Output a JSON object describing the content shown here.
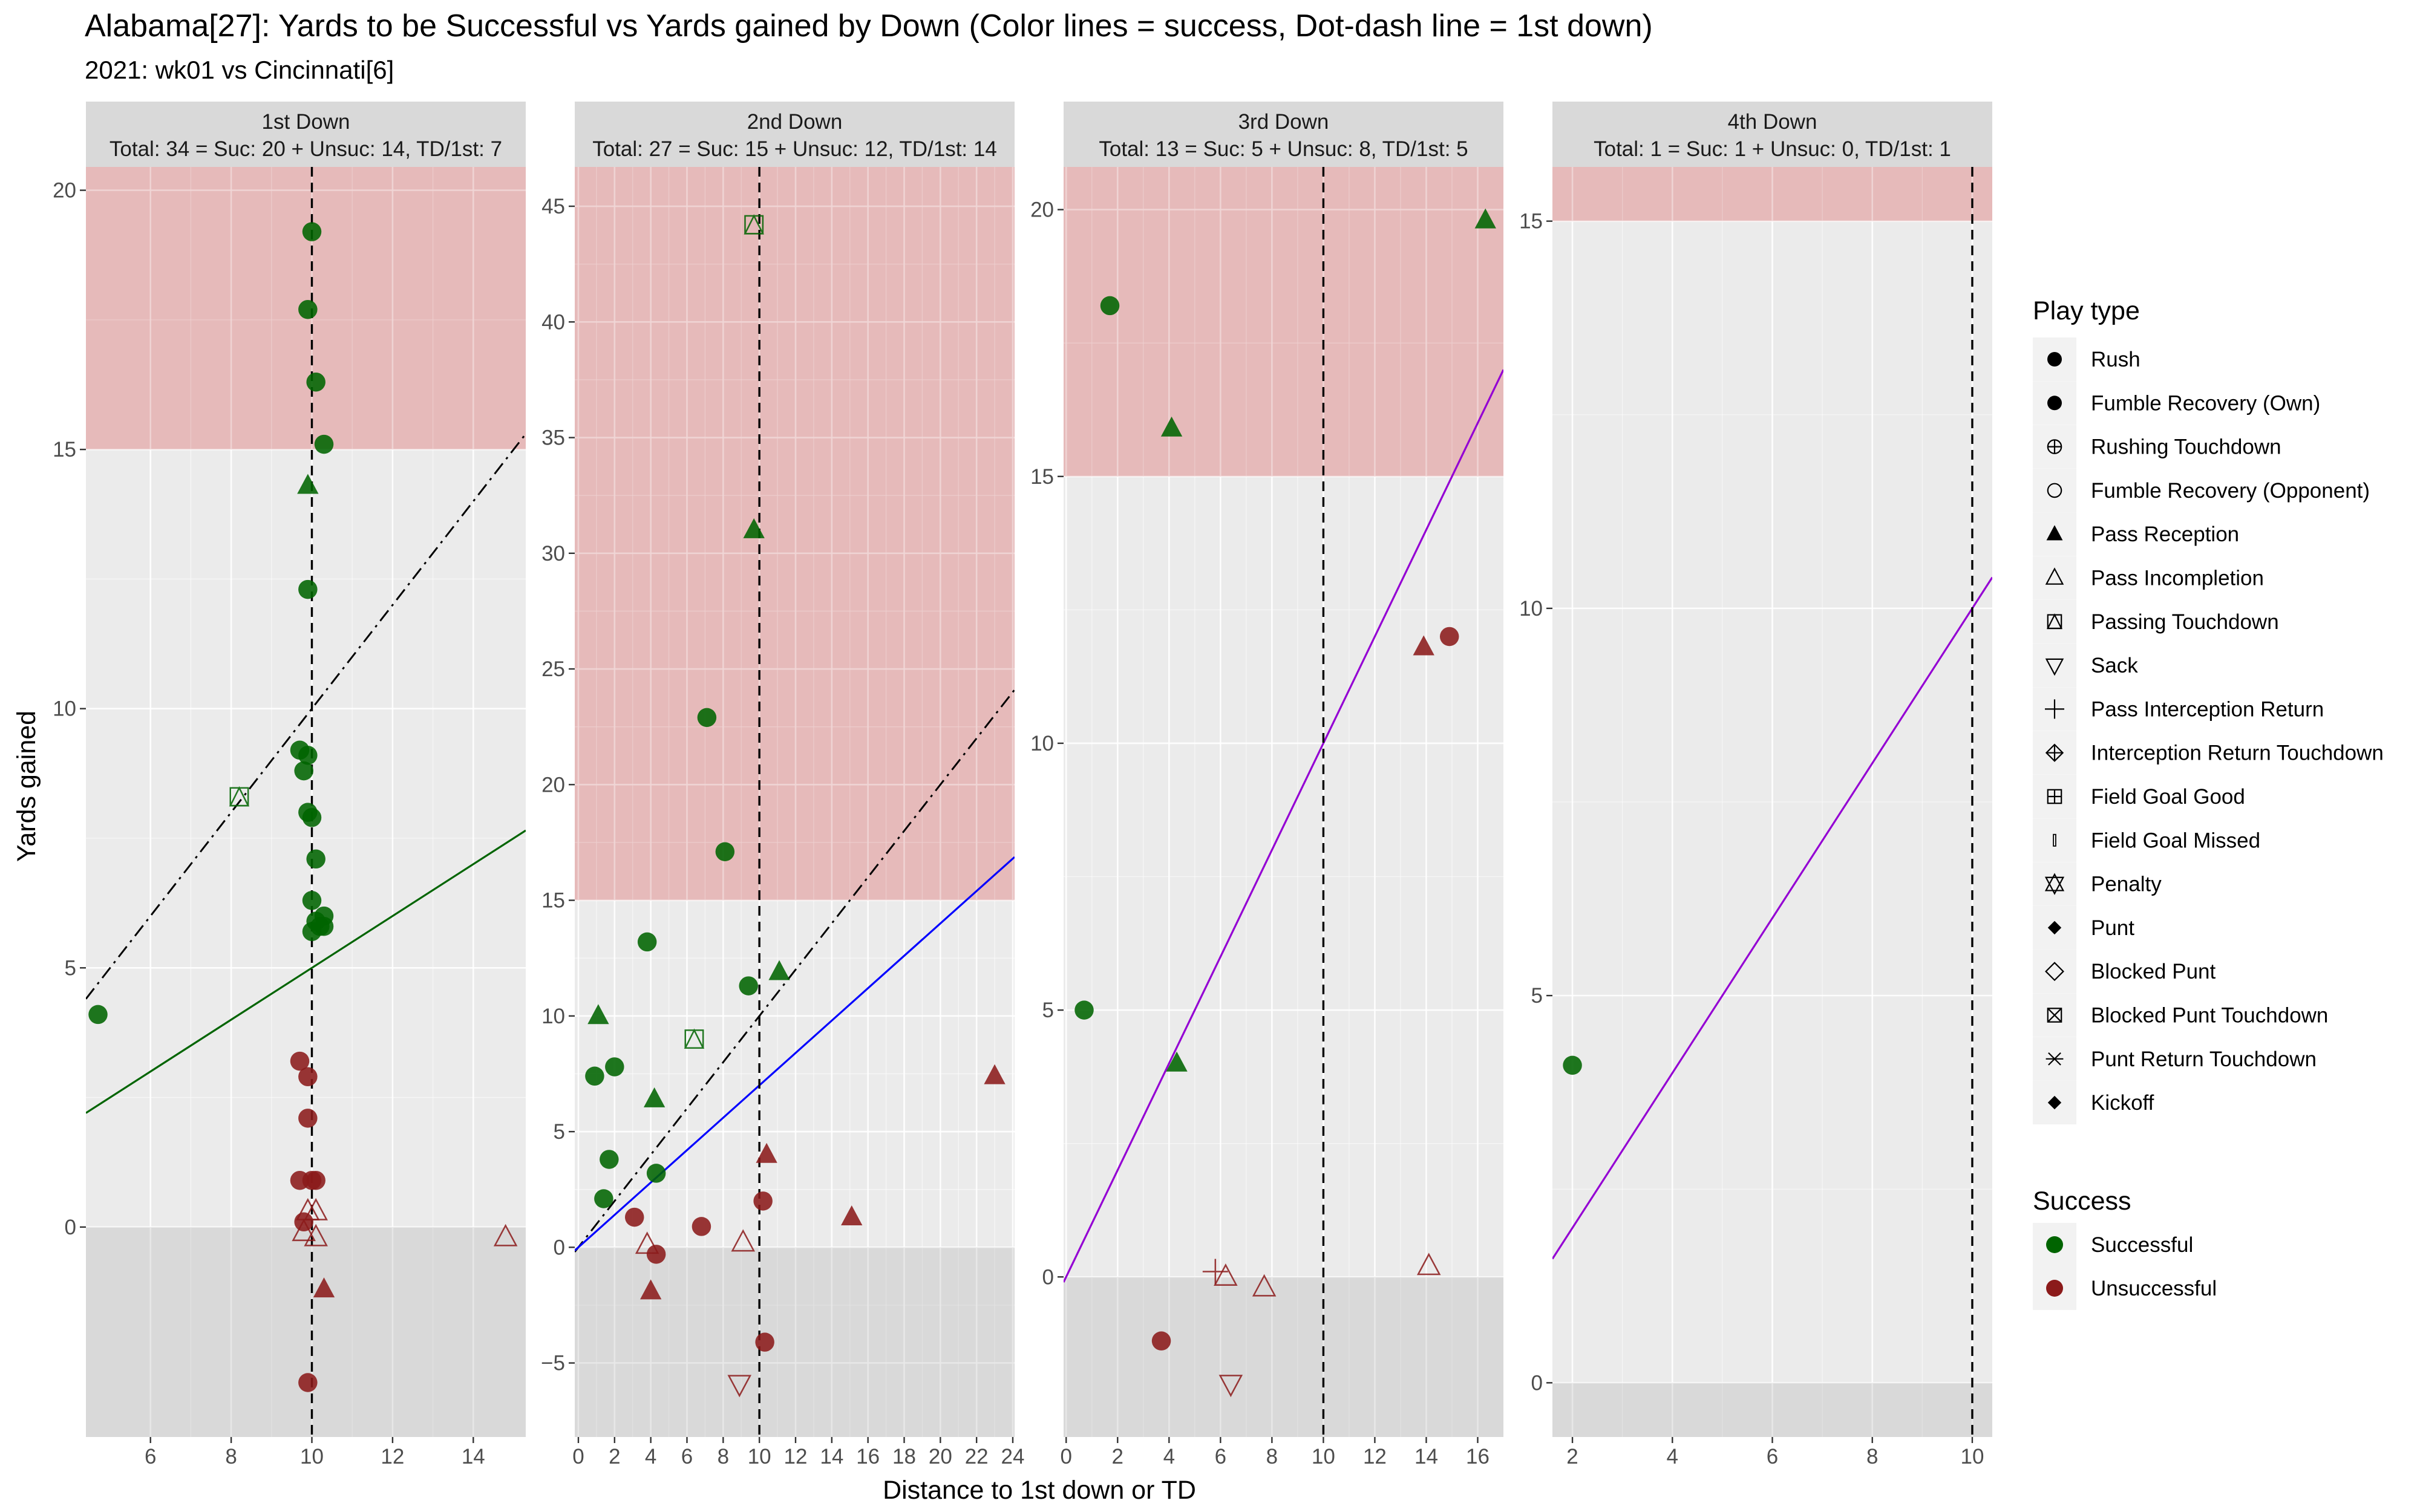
{
  "chart_data": {
    "type": "scatter",
    "title": "Alabama[27]: Yards to be Successful vs Yards gained by Down  (Color lines = success, Dot-dash line = 1st down)",
    "subtitle": "2021: wk01 vs Cincinnati[6]",
    "xlabel": "Distance to 1st down or TD",
    "ylabel": "Yards gained",
    "colors": {
      "Successful": "#006400",
      "Unsuccessful": "#8B1A1A",
      "panel_background": "#EBEBEB",
      "band_high": "#E6BABA",
      "band_low": "#D9D9D9",
      "strip_background": "#D9D9D9",
      "line_1st_down_success": "#006400",
      "line_2nd_down_success": "#0000FF",
      "line_3rd_4th_down_success": "#9400D3"
    },
    "legend": {
      "placement": "right",
      "play_type_title": "Play type",
      "play_types": [
        {
          "label": "Rush",
          "icon": "circle-filled"
        },
        {
          "label": "Fumble Recovery (Own)",
          "icon": "circle-filled"
        },
        {
          "label": "Rushing Touchdown",
          "icon": "circle-plus"
        },
        {
          "label": "Fumble Recovery (Opponent)",
          "icon": "circle-open"
        },
        {
          "label": "Pass Reception",
          "icon": "triangle-filled"
        },
        {
          "label": "Pass Incompletion",
          "icon": "triangle-open"
        },
        {
          "label": "Passing Touchdown",
          "icon": "square-triangle"
        },
        {
          "label": "Sack",
          "icon": "triangle-down-open"
        },
        {
          "label": "Pass Interception Return",
          "icon": "plus"
        },
        {
          "label": "Interception Return Touchdown",
          "icon": "diamond-plus"
        },
        {
          "label": "Field Goal Good",
          "icon": "square-plus"
        },
        {
          "label": "Field Goal Missed",
          "icon": "thin-bar"
        },
        {
          "label": "Penalty",
          "icon": "star-of-david"
        },
        {
          "label": "Punt",
          "icon": "diamond-filled"
        },
        {
          "label": "Blocked Punt",
          "icon": "diamond-open"
        },
        {
          "label": "Blocked Punt Touchdown",
          "icon": "square-x"
        },
        {
          "label": "Punt Return Touchdown",
          "icon": "asterisk"
        },
        {
          "label": "Kickoff",
          "icon": "diamond-filled"
        }
      ],
      "success_title": "Success",
      "success_items": [
        {
          "label": "Successful",
          "color": "#006400"
        },
        {
          "label": "Unsuccessful",
          "color": "#8B1A1A"
        }
      ]
    },
    "panels": [
      {
        "strip_title": "1st Down",
        "strip_summary": "Total: 34 = Suc: 20 + Unsuc: 14, TD/1st: 7",
        "xlim": [
          4.4,
          15.3
        ],
        "ylim": [
          -4.05,
          20.45
        ],
        "xticks": [
          6,
          8,
          10,
          12,
          14
        ],
        "yticks": [
          0,
          5,
          10,
          15,
          20
        ],
        "first_down_x": 10,
        "success_line": {
          "slope": 0.5,
          "intercept": 0,
          "color": "#006400",
          "style": "solid"
        },
        "first_down_line": {
          "slope": 1,
          "intercept": 0,
          "style": "dot-dash"
        },
        "points": [
          {
            "x": 10.0,
            "y": 19.2,
            "shape": "circle-filled",
            "success": true
          },
          {
            "x": 9.9,
            "y": 17.7,
            "shape": "circle-filled",
            "success": true
          },
          {
            "x": 10.1,
            "y": 16.3,
            "shape": "circle-filled",
            "success": true
          },
          {
            "x": 10.3,
            "y": 15.1,
            "shape": "circle-filled",
            "success": true
          },
          {
            "x": 9.9,
            "y": 14.3,
            "shape": "triangle-filled",
            "success": true
          },
          {
            "x": 9.9,
            "y": 12.3,
            "shape": "circle-filled",
            "success": true
          },
          {
            "x": 9.7,
            "y": 9.2,
            "shape": "circle-filled",
            "success": true
          },
          {
            "x": 9.9,
            "y": 9.1,
            "shape": "circle-filled",
            "success": true
          },
          {
            "x": 9.8,
            "y": 8.8,
            "shape": "circle-filled",
            "success": true
          },
          {
            "x": 8.2,
            "y": 8.3,
            "shape": "square-triangle",
            "success": true
          },
          {
            "x": 10.0,
            "y": 7.9,
            "shape": "circle-filled",
            "success": true
          },
          {
            "x": 9.9,
            "y": 8.0,
            "shape": "circle-filled",
            "success": true
          },
          {
            "x": 10.1,
            "y": 7.1,
            "shape": "circle-filled",
            "success": true
          },
          {
            "x": 10.0,
            "y": 6.3,
            "shape": "circle-filled",
            "success": true
          },
          {
            "x": 10.3,
            "y": 6.0,
            "shape": "circle-filled",
            "success": true
          },
          {
            "x": 10.1,
            "y": 5.9,
            "shape": "circle-filled",
            "success": true
          },
          {
            "x": 10.2,
            "y": 5.8,
            "shape": "circle-filled",
            "success": true
          },
          {
            "x": 10.3,
            "y": 5.8,
            "shape": "circle-filled",
            "success": true
          },
          {
            "x": 10.0,
            "y": 5.7,
            "shape": "circle-filled",
            "success": true
          },
          {
            "x": 4.7,
            "y": 4.1,
            "shape": "circle-filled",
            "success": true
          },
          {
            "x": 9.7,
            "y": 3.2,
            "shape": "circle-filled",
            "success": false
          },
          {
            "x": 9.9,
            "y": 2.9,
            "shape": "circle-filled",
            "success": false
          },
          {
            "x": 9.9,
            "y": 2.1,
            "shape": "circle-filled",
            "success": false
          },
          {
            "x": 9.7,
            "y": 0.9,
            "shape": "circle-filled",
            "success": false
          },
          {
            "x": 10.1,
            "y": 0.9,
            "shape": "circle-filled",
            "success": false
          },
          {
            "x": 10.0,
            "y": 0.9,
            "shape": "circle-filled",
            "success": false
          },
          {
            "x": 9.9,
            "y": 0.3,
            "shape": "triangle-open",
            "success": false
          },
          {
            "x": 10.1,
            "y": 0.3,
            "shape": "triangle-open",
            "success": false
          },
          {
            "x": 9.8,
            "y": 0.1,
            "shape": "circle-filled",
            "success": false
          },
          {
            "x": 9.8,
            "y": -0.1,
            "shape": "triangle-open",
            "success": false
          },
          {
            "x": 10.1,
            "y": -0.2,
            "shape": "triangle-open",
            "success": false
          },
          {
            "x": 14.8,
            "y": -0.2,
            "shape": "triangle-open",
            "success": false
          },
          {
            "x": 10.3,
            "y": -1.2,
            "shape": "triangle-filled",
            "success": false
          },
          {
            "x": 9.9,
            "y": -3.0,
            "shape": "circle-filled",
            "success": false
          }
        ]
      },
      {
        "strip_title": "2nd Down",
        "strip_summary": "Total: 27 = Suc: 15 + Unsuc: 12, TD/1st: 14",
        "xlim": [
          -0.2,
          24.1
        ],
        "ylim": [
          -8.2,
          46.7
        ],
        "xticks": [
          0,
          2,
          4,
          6,
          8,
          10,
          12,
          14,
          16,
          18,
          20,
          22,
          24
        ],
        "yticks": [
          -5,
          0,
          5,
          10,
          15,
          20,
          25,
          30,
          35,
          40,
          45
        ],
        "first_down_x": 10,
        "success_line": {
          "slope": 0.7,
          "intercept": 0,
          "color": "#0000FF",
          "style": "solid"
        },
        "first_down_line": {
          "slope": 1,
          "intercept": 0,
          "style": "dot-dash"
        },
        "points": [
          {
            "x": 9.7,
            "y": 44.2,
            "shape": "square-triangle",
            "success": true
          },
          {
            "x": 9.7,
            "y": 31.0,
            "shape": "triangle-filled",
            "success": true
          },
          {
            "x": 7.1,
            "y": 22.9,
            "shape": "circle-filled",
            "success": true
          },
          {
            "x": 8.1,
            "y": 17.1,
            "shape": "circle-filled",
            "success": true
          },
          {
            "x": 3.8,
            "y": 13.2,
            "shape": "circle-filled",
            "success": true
          },
          {
            "x": 11.1,
            "y": 11.9,
            "shape": "triangle-filled",
            "success": true
          },
          {
            "x": 9.4,
            "y": 11.3,
            "shape": "circle-filled",
            "success": true
          },
          {
            "x": 1.1,
            "y": 10.0,
            "shape": "triangle-filled",
            "success": true
          },
          {
            "x": 6.4,
            "y": 9.0,
            "shape": "square-triangle",
            "success": true
          },
          {
            "x": 2.0,
            "y": 7.8,
            "shape": "circle-filled",
            "success": true
          },
          {
            "x": 0.9,
            "y": 7.4,
            "shape": "circle-filled",
            "success": true
          },
          {
            "x": 4.2,
            "y": 6.4,
            "shape": "triangle-filled",
            "success": true
          },
          {
            "x": 1.7,
            "y": 3.8,
            "shape": "circle-filled",
            "success": true
          },
          {
            "x": 4.3,
            "y": 3.2,
            "shape": "circle-filled",
            "success": true
          },
          {
            "x": 1.4,
            "y": 2.1,
            "shape": "circle-filled",
            "success": true
          },
          {
            "x": 23.0,
            "y": 7.4,
            "shape": "triangle-filled",
            "success": false
          },
          {
            "x": 10.4,
            "y": 4.0,
            "shape": "triangle-filled",
            "success": false
          },
          {
            "x": 10.2,
            "y": 2.0,
            "shape": "circle-filled",
            "success": false
          },
          {
            "x": 15.1,
            "y": 1.3,
            "shape": "triangle-filled",
            "success": false
          },
          {
            "x": 3.1,
            "y": 1.3,
            "shape": "circle-filled",
            "success": false
          },
          {
            "x": 6.8,
            "y": 0.9,
            "shape": "circle-filled",
            "success": false
          },
          {
            "x": 9.1,
            "y": 0.2,
            "shape": "triangle-open",
            "success": false
          },
          {
            "x": 3.8,
            "y": 0.1,
            "shape": "triangle-open",
            "success": false
          },
          {
            "x": 4.3,
            "y": -0.3,
            "shape": "circle-filled",
            "success": false
          },
          {
            "x": 4.0,
            "y": -1.9,
            "shape": "triangle-filled",
            "success": false
          },
          {
            "x": 10.3,
            "y": -4.1,
            "shape": "circle-filled",
            "success": false
          },
          {
            "x": 8.9,
            "y": -5.9,
            "shape": "triangle-down-open",
            "success": false
          }
        ]
      },
      {
        "strip_title": "3rd Down",
        "strip_summary": "Total: 13 = Suc: 5 + Unsuc: 8, TD/1st: 5",
        "xlim": [
          -0.1,
          17.0
        ],
        "ylim": [
          -3.0,
          20.8
        ],
        "xticks": [
          0,
          2,
          4,
          6,
          8,
          10,
          12,
          14,
          16
        ],
        "yticks": [
          0,
          5,
          10,
          15,
          20
        ],
        "first_down_x": 10,
        "success_line": {
          "slope": 1,
          "intercept": 0,
          "color": "#9400D3",
          "style": "solid"
        },
        "points": [
          {
            "x": 16.3,
            "y": 19.8,
            "shape": "triangle-filled",
            "success": true
          },
          {
            "x": 1.7,
            "y": 18.2,
            "shape": "circle-filled",
            "success": true
          },
          {
            "x": 4.1,
            "y": 15.9,
            "shape": "triangle-filled",
            "success": true
          },
          {
            "x": 0.7,
            "y": 5.0,
            "shape": "circle-filled",
            "success": true
          },
          {
            "x": 4.3,
            "y": 4.0,
            "shape": "triangle-filled",
            "success": true
          },
          {
            "x": 14.9,
            "y": 12.0,
            "shape": "circle-filled",
            "success": false
          },
          {
            "x": 13.9,
            "y": 11.8,
            "shape": "triangle-filled",
            "success": false
          },
          {
            "x": 14.1,
            "y": 0.2,
            "shape": "triangle-open",
            "success": false
          },
          {
            "x": 5.8,
            "y": 0.1,
            "shape": "plus",
            "success": false
          },
          {
            "x": 6.2,
            "y": 0.0,
            "shape": "triangle-open",
            "success": false
          },
          {
            "x": 7.7,
            "y": -0.2,
            "shape": "triangle-open",
            "success": false
          },
          {
            "x": 3.7,
            "y": -1.2,
            "shape": "circle-filled",
            "success": false
          },
          {
            "x": 6.4,
            "y": -2.0,
            "shape": "triangle-down-open",
            "success": false
          }
        ]
      },
      {
        "strip_title": "4th Down",
        "strip_summary": "Total: 1 = Suc: 1 + Unsuc: 0, TD/1st: 1",
        "xlim": [
          1.6,
          10.4
        ],
        "ylim": [
          -0.7,
          15.7
        ],
        "xticks": [
          2,
          4,
          6,
          8,
          10
        ],
        "yticks": [
          0,
          5,
          10,
          15
        ],
        "first_down_x": 10,
        "success_line": {
          "slope": 1,
          "intercept": 0,
          "color": "#9400D3",
          "style": "solid"
        },
        "points": [
          {
            "x": 2.0,
            "y": 4.1,
            "shape": "circle-filled",
            "success": true
          }
        ]
      }
    ]
  }
}
